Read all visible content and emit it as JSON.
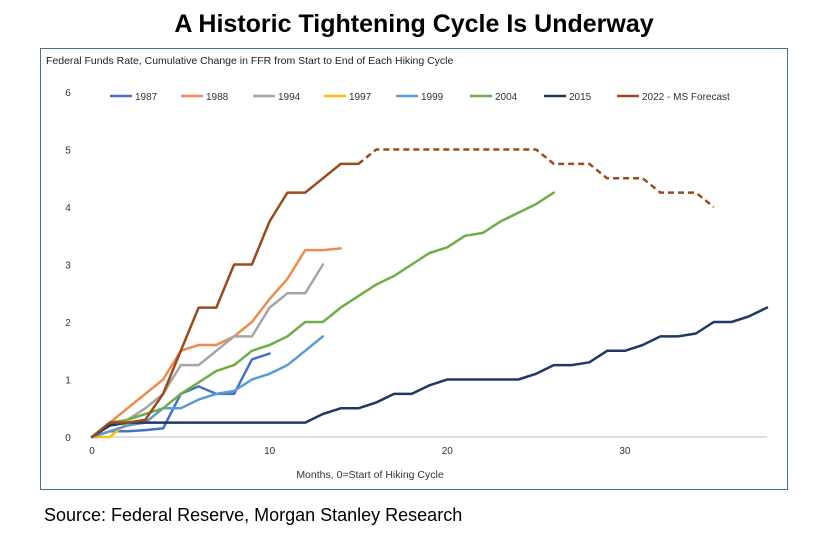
{
  "page": {
    "title": "A Historic Tightening Cycle Is Underway",
    "source": "Source: Federal Reserve, Morgan Stanley Research"
  },
  "chart_data": {
    "type": "line",
    "title": "Federal Funds Rate, Cumulative Change in FFR from Start to End of Each Hiking Cycle",
    "xlabel": "Months, 0=Start of Hiking Cycle",
    "ylabel": "",
    "xlim": [
      0,
      38
    ],
    "ylim": [
      0,
      6
    ],
    "xticks": [
      0,
      10,
      20,
      30
    ],
    "yticks": [
      0,
      1,
      2,
      3,
      4,
      5,
      6
    ],
    "grid": false,
    "legend_position": "top",
    "series": [
      {
        "name": "1987",
        "color": "#4472c4",
        "dashed": false,
        "x": [
          0,
          1,
          2,
          3,
          4,
          5,
          6,
          7,
          8,
          9,
          10
        ],
        "y": [
          0,
          0.1,
          0.1,
          0.12,
          0.15,
          0.75,
          0.88,
          0.75,
          0.75,
          1.35,
          1.45
        ]
      },
      {
        "name": "1988",
        "color": "#ed8c4e",
        "dashed": false,
        "x": [
          0,
          1,
          2,
          3,
          4,
          5,
          6,
          7,
          8,
          9,
          10,
          11,
          12,
          13,
          14
        ],
        "y": [
          0,
          0.25,
          0.5,
          0.75,
          1.0,
          1.5,
          1.6,
          1.6,
          1.75,
          2.0,
          2.4,
          2.75,
          3.25,
          3.25,
          3.28
        ]
      },
      {
        "name": "1994",
        "color": "#a5a5a5",
        "dashed": false,
        "x": [
          0,
          1,
          2,
          3,
          4,
          5,
          6,
          7,
          8,
          9,
          10,
          11,
          12,
          13
        ],
        "y": [
          0,
          0.2,
          0.3,
          0.5,
          0.75,
          1.25,
          1.25,
          1.5,
          1.75,
          1.75,
          2.25,
          2.5,
          2.5,
          3.0
        ]
      },
      {
        "name": "1997",
        "color": "#ffc000",
        "dashed": false,
        "x": [
          0,
          1,
          2
        ],
        "y": [
          0,
          0,
          0.25
        ]
      },
      {
        "name": "1999",
        "color": "#5b9bd5",
        "dashed": false,
        "x": [
          0,
          1,
          2,
          3,
          4,
          5,
          6,
          7,
          8,
          9,
          10,
          11,
          12,
          13
        ],
        "y": [
          0,
          0.1,
          0.2,
          0.25,
          0.5,
          0.5,
          0.65,
          0.75,
          0.8,
          1.0,
          1.1,
          1.25,
          1.5,
          1.75
        ]
      },
      {
        "name": "2004",
        "color": "#70ad47",
        "dashed": false,
        "x": [
          0,
          1,
          2,
          3,
          4,
          5,
          6,
          7,
          8,
          9,
          10,
          11,
          12,
          13,
          14,
          15,
          16,
          17,
          18,
          19,
          20,
          21,
          22,
          23,
          24,
          25,
          26
        ],
        "y": [
          0,
          0.25,
          0.3,
          0.4,
          0.5,
          0.75,
          0.95,
          1.15,
          1.25,
          1.5,
          1.6,
          1.75,
          2.0,
          2.0,
          2.25,
          2.45,
          2.65,
          2.8,
          3.0,
          3.2,
          3.3,
          3.5,
          3.55,
          3.75,
          3.9,
          4.05,
          4.25
        ]
      },
      {
        "name": "2015",
        "color": "#203864",
        "dashed": false,
        "x": [
          0,
          1,
          2,
          3,
          4,
          5,
          6,
          7,
          8,
          9,
          10,
          11,
          12,
          13,
          14,
          15,
          16,
          17,
          18,
          19,
          20,
          21,
          22,
          23,
          24,
          25,
          26,
          27,
          28,
          29,
          30,
          31,
          32,
          33,
          34,
          35,
          36,
          37,
          38
        ],
        "y": [
          0,
          0.2,
          0.25,
          0.25,
          0.25,
          0.25,
          0.25,
          0.25,
          0.25,
          0.25,
          0.25,
          0.25,
          0.25,
          0.4,
          0.5,
          0.5,
          0.6,
          0.75,
          0.75,
          0.9,
          1.0,
          1.0,
          1.0,
          1.0,
          1.0,
          1.1,
          1.25,
          1.25,
          1.3,
          1.5,
          1.5,
          1.6,
          1.75,
          1.75,
          1.8,
          2.0,
          2.0,
          2.1,
          2.25
        ]
      },
      {
        "name": "2022 - MS Forecast",
        "color": "#9c4a1c",
        "dashed": false,
        "x": [
          0,
          1,
          2,
          3,
          4,
          5,
          6,
          7,
          8,
          9,
          10,
          11,
          12,
          13,
          14,
          15
        ],
        "y": [
          0,
          0.25,
          0.25,
          0.3,
          0.75,
          1.5,
          2.25,
          2.25,
          3.0,
          3.0,
          3.75,
          4.25,
          4.25,
          4.5,
          4.75,
          4.75
        ]
      },
      {
        "name": "",
        "color": "#9c4a1c",
        "dashed": true,
        "x": [
          15,
          16,
          17,
          18,
          19,
          20,
          21,
          22,
          23,
          24,
          25,
          26,
          27,
          28,
          29,
          30,
          31,
          32,
          33,
          34,
          35
        ],
        "y": [
          4.75,
          5.0,
          5.0,
          5.0,
          5.0,
          5.0,
          5.0,
          5.0,
          5.0,
          5.0,
          5.0,
          4.75,
          4.75,
          4.75,
          4.5,
          4.5,
          4.5,
          4.25,
          4.25,
          4.25,
          4.0
        ]
      }
    ]
  }
}
